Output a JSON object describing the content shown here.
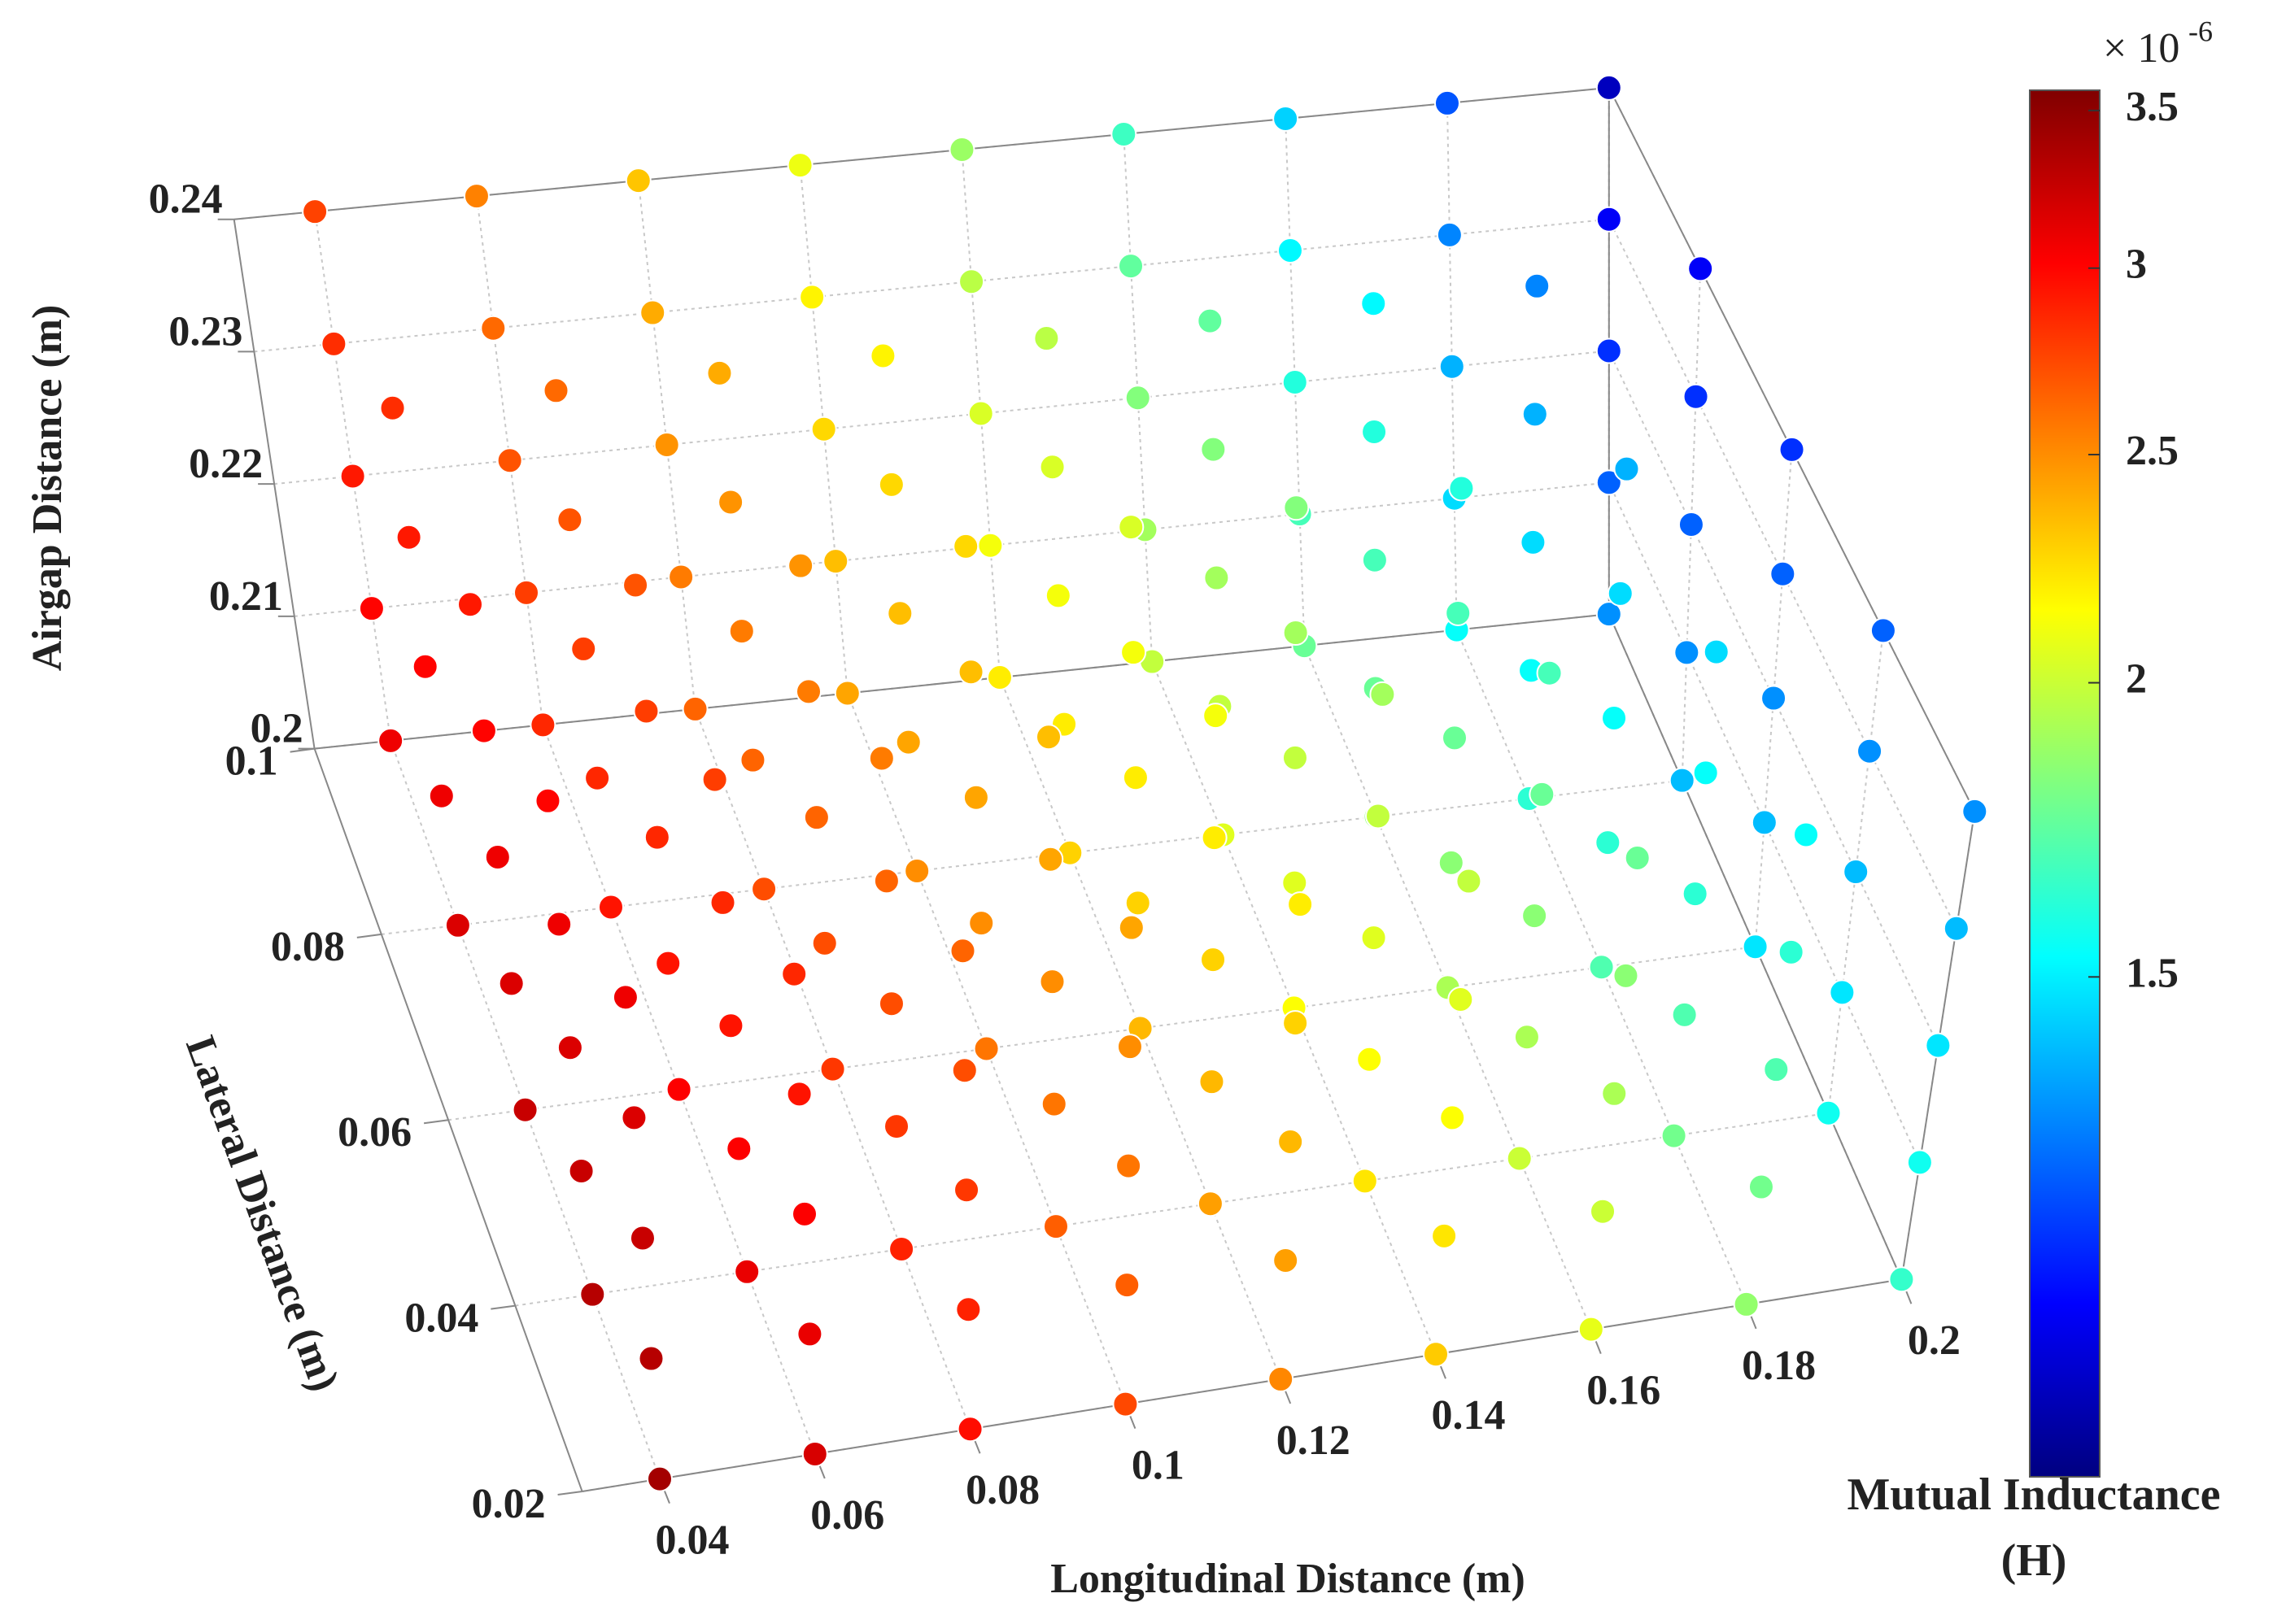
{
  "chart_data": {
    "type": "scatter3d",
    "xlabel": "Longitudinal Distance (m)",
    "ylabel": "Lateral Distance (m)",
    "zlabel": "Airgap Distance (m)",
    "x": [
      0.04,
      0.06,
      0.08,
      0.1,
      0.12,
      0.14,
      0.16,
      0.18,
      0.2
    ],
    "y": [
      0.02,
      0.04,
      0.06,
      0.08,
      0.1
    ],
    "z": [
      0.2,
      0.21,
      0.22,
      0.23,
      0.24
    ],
    "values": [
      [
        [
          3.4,
          3.18,
          2.96,
          2.74,
          2.52,
          2.3,
          2.08,
          1.86,
          1.64
        ],
        [
          3.32,
          3.1,
          2.88,
          2.66,
          2.44,
          2.22,
          2,
          1.78,
          1.56
        ],
        [
          3.24,
          3.02,
          2.8,
          2.58,
          2.36,
          2.14,
          1.92,
          1.7,
          1.48
        ],
        [
          3.16,
          2.94,
          2.72,
          2.5,
          2.28,
          2.06,
          1.84,
          1.62,
          1.4
        ],
        [
          3.08,
          2.86,
          2.64,
          2.42,
          2.2,
          1.98,
          1.76,
          1.54,
          1.32
        ]
      ],
      [
        [
          3.32,
          3.1,
          2.88,
          2.66,
          2.44,
          2.22,
          2,
          1.78,
          1.56
        ],
        [
          3.24,
          3.02,
          2.8,
          2.58,
          2.36,
          2.14,
          1.92,
          1.7,
          1.48
        ],
        [
          3.16,
          2.94,
          2.72,
          2.5,
          2.28,
          2.06,
          1.84,
          1.62,
          1.4
        ],
        [
          3.08,
          2.86,
          2.64,
          2.42,
          2.2,
          1.98,
          1.76,
          1.54,
          1.32
        ],
        [
          3,
          2.78,
          2.56,
          2.34,
          2.12,
          1.9,
          1.68,
          1.46,
          1.24
        ]
      ],
      [
        [
          3.24,
          3.02,
          2.8,
          2.58,
          2.36,
          2.14,
          1.92,
          1.7,
          1.48
        ],
        [
          3.16,
          2.94,
          2.72,
          2.5,
          2.28,
          2.06,
          1.84,
          1.62,
          1.4
        ],
        [
          3.08,
          2.86,
          2.64,
          2.42,
          2.2,
          1.98,
          1.76,
          1.54,
          1.32
        ],
        [
          3,
          2.78,
          2.56,
          2.34,
          2.12,
          1.9,
          1.68,
          1.46,
          1.24
        ],
        [
          2.92,
          2.7,
          2.48,
          2.26,
          2.04,
          1.82,
          1.6,
          1.38,
          1.16
        ]
      ],
      [
        [
          3.16,
          2.94,
          2.72,
          2.5,
          2.28,
          2.06,
          1.84,
          1.62,
          1.4
        ],
        [
          3.08,
          2.86,
          2.64,
          2.42,
          2.2,
          1.98,
          1.76,
          1.54,
          1.32
        ],
        [
          3,
          2.78,
          2.56,
          2.34,
          2.12,
          1.9,
          1.68,
          1.46,
          1.24
        ],
        [
          2.92,
          2.7,
          2.48,
          2.26,
          2.04,
          1.82,
          1.6,
          1.38,
          1.16
        ],
        [
          2.84,
          2.62,
          2.4,
          2.18,
          1.96,
          1.74,
          1.52,
          1.3,
          1.08
        ]
      ],
      [
        [
          3.08,
          2.86,
          2.64,
          2.42,
          2.2,
          1.98,
          1.76,
          1.54,
          1.32
        ],
        [
          3,
          2.78,
          2.56,
          2.34,
          2.12,
          1.9,
          1.68,
          1.46,
          1.24
        ],
        [
          2.92,
          2.7,
          2.48,
          2.26,
          2.04,
          1.82,
          1.6,
          1.38,
          1.16
        ],
        [
          2.84,
          2.62,
          2.4,
          2.18,
          1.96,
          1.74,
          1.52,
          1.3,
          1.08
        ],
        [
          2.76,
          2.54,
          2.32,
          2.1,
          1.88,
          1.66,
          1.44,
          1.22,
          1.0
        ]
      ]
    ],
    "xlim": [
      0.03,
      0.2
    ],
    "ylim": [
      0.02,
      0.1
    ],
    "zlim": [
      0.2,
      0.24
    ],
    "xticks": [
      0.04,
      0.06,
      0.08,
      0.1,
      0.12,
      0.14,
      0.16,
      0.18,
      0.2
    ],
    "yticks": [
      0.02,
      0.04,
      0.06,
      0.08,
      0.1
    ],
    "zticks": [
      0.2,
      0.21,
      0.22,
      0.23,
      0.24
    ],
    "grid": true,
    "colorbar": {
      "label": [
        "Mutual Inductance",
        "(H)"
      ],
      "multiplier": "× 10",
      "exponent": "-6",
      "lim": [
        0.92,
        3.57
      ],
      "ticks": [
        1.5,
        2,
        2.5,
        3,
        3.5
      ],
      "log": true,
      "colormap": "jet"
    }
  }
}
